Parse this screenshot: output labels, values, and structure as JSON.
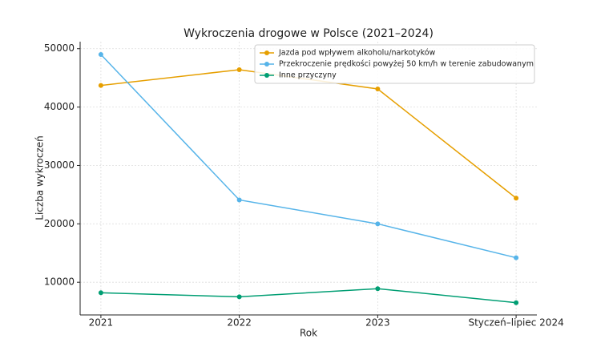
{
  "chart_data": {
    "type": "line",
    "title": "Wykroczenia drogowe w Polsce (2021–2024)",
    "xlabel": "Rok",
    "ylabel": "Liczba wykroczeń",
    "categories": [
      "2021",
      "2022",
      "2023",
      "Styczeń–lipiec 2024"
    ],
    "series": [
      {
        "name": "Jazda pod wpływem alkoholu/narkotyków",
        "color": "#e69f00",
        "values": [
          43700,
          46400,
          43100,
          24400
        ]
      },
      {
        "name": "Przekroczenie prędkości powyżej 50 km/h w terenie zabudowanym",
        "color": "#56b4e9",
        "values": [
          49000,
          24100,
          20000,
          14200
        ]
      },
      {
        "name": "Inne przyczyny",
        "color": "#009e73",
        "values": [
          8200,
          7500,
          8900,
          6500
        ]
      }
    ],
    "ylim": [
      4400,
      51200
    ],
    "yticks": [
      10000,
      20000,
      30000,
      40000,
      50000
    ],
    "grid": true
  }
}
